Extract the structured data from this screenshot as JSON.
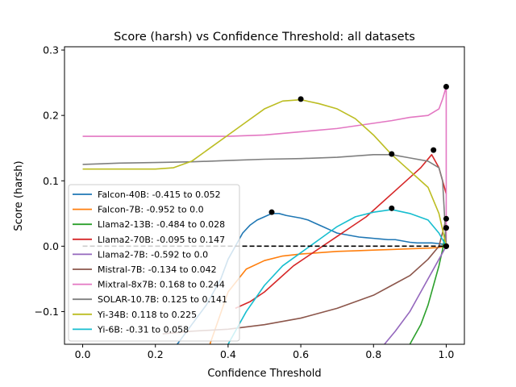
{
  "chart_data": {
    "type": "line",
    "title": "Score (harsh) vs Confidence Threshold: all datasets",
    "xlabel": "Confidence Threshold",
    "ylabel": "Score (harsh)",
    "xlim": [
      -0.05,
      1.05
    ],
    "ylim": [
      -0.15,
      0.305
    ],
    "xticks": [
      0.0,
      0.2,
      0.4,
      0.6,
      0.8,
      1.0
    ],
    "xtick_labels": [
      "0.0",
      "0.2",
      "0.4",
      "0.6",
      "0.8",
      "1.0"
    ],
    "yticks": [
      -0.1,
      0.0,
      0.1,
      0.2,
      0.3
    ],
    "ytick_labels": [
      "−0.1",
      "0.0",
      "0.1",
      "0.2",
      "0.3"
    ],
    "grid": false,
    "legend_position": "lower-left",
    "baseline": {
      "y": 0.0,
      "x_start": 0.0,
      "x_end": 1.0,
      "color": "#000000",
      "style": "dashed"
    },
    "series": [
      {
        "name": "Falcon-40B: -0.415 to 0.052",
        "color": "#1f77b4",
        "x": [
          0.26,
          0.3,
          0.34,
          0.38,
          0.4,
          0.42,
          0.44,
          0.46,
          0.48,
          0.5,
          0.52,
          0.54,
          0.56,
          0.58,
          0.6,
          0.62,
          0.64,
          0.66,
          0.68,
          0.7,
          0.72,
          0.74,
          0.76,
          0.78,
          0.8,
          0.82,
          0.84,
          0.86,
          0.88,
          0.9,
          0.92,
          0.94,
          0.96,
          0.98,
          0.99,
          1.0
        ],
        "y": [
          -0.15,
          -0.12,
          -0.09,
          -0.05,
          -0.02,
          0.0,
          0.02,
          0.032,
          0.04,
          0.045,
          0.05,
          0.05,
          0.047,
          0.045,
          0.043,
          0.04,
          0.035,
          0.03,
          0.025,
          0.02,
          0.018,
          0.016,
          0.014,
          0.013,
          0.012,
          0.011,
          0.01,
          0.01,
          0.008,
          0.006,
          0.005,
          0.005,
          0.005,
          0.004,
          0.003,
          0.0
        ],
        "max_point": [
          0.52,
          0.052
        ]
      },
      {
        "name": "Falcon-7B: -0.952 to 0.0",
        "color": "#ff7f0e",
        "x": [
          0.35,
          0.4,
          0.45,
          0.5,
          0.55,
          0.6,
          0.65,
          0.7,
          0.75,
          0.8,
          0.85,
          0.9,
          0.95,
          0.98,
          1.0
        ],
        "y": [
          -0.15,
          -0.07,
          -0.035,
          -0.022,
          -0.015,
          -0.012,
          -0.01,
          -0.008,
          -0.007,
          -0.006,
          -0.005,
          -0.004,
          -0.003,
          -0.002,
          0.0
        ],
        "max_point": [
          1.0,
          0.0
        ]
      },
      {
        "name": "Llama2-13B: -0.484 to 0.028",
        "color": "#2ca02c",
        "x": [
          0.9,
          0.93,
          0.95,
          0.97,
          0.98,
          0.99,
          1.0
        ],
        "y": [
          -0.15,
          -0.12,
          -0.09,
          -0.05,
          -0.03,
          -0.005,
          0.028
        ],
        "max_point": [
          1.0,
          0.028
        ]
      },
      {
        "name": "Llama2-70B: -0.095 to 0.147",
        "color": "#d62728",
        "x": [
          0.42,
          0.46,
          0.5,
          0.54,
          0.58,
          0.62,
          0.66,
          0.7,
          0.74,
          0.78,
          0.82,
          0.86,
          0.9,
          0.93,
          0.96,
          0.98,
          1.0
        ],
        "y": [
          -0.095,
          -0.085,
          -0.07,
          -0.05,
          -0.03,
          -0.015,
          0.0,
          0.015,
          0.03,
          0.045,
          0.065,
          0.085,
          0.105,
          0.12,
          0.14,
          0.12,
          0.08
        ],
        "max_point": [
          0.965,
          0.147
        ]
      },
      {
        "name": "Llama2-7B: -0.592 to 0.0",
        "color": "#9467bd",
        "x": [
          0.83,
          0.86,
          0.9,
          0.94,
          0.97,
          0.99,
          1.0
        ],
        "y": [
          -0.15,
          -0.13,
          -0.1,
          -0.06,
          -0.03,
          -0.01,
          0.0
        ],
        "max_point": [
          1.0,
          0.0
        ]
      },
      {
        "name": "Mistral-7B: -0.134 to 0.042",
        "color": "#8c564b",
        "x": [
          0.22,
          0.3,
          0.4,
          0.5,
          0.6,
          0.7,
          0.75,
          0.8,
          0.85,
          0.9,
          0.95,
          0.98,
          1.0
        ],
        "y": [
          -0.134,
          -0.13,
          -0.127,
          -0.12,
          -0.11,
          -0.095,
          -0.085,
          -0.075,
          -0.06,
          -0.045,
          -0.02,
          0.0,
          0.042
        ],
        "max_point": [
          1.0,
          0.042
        ]
      },
      {
        "name": "Mixtral-8x7B: 0.168 to 0.244",
        "color": "#e377c2",
        "x": [
          0.0,
          0.1,
          0.2,
          0.3,
          0.4,
          0.5,
          0.6,
          0.7,
          0.8,
          0.85,
          0.9,
          0.95,
          0.98,
          0.99,
          1.0,
          1.0
        ],
        "y": [
          0.168,
          0.168,
          0.168,
          0.168,
          0.168,
          0.17,
          0.175,
          0.18,
          0.188,
          0.192,
          0.197,
          0.2,
          0.21,
          0.225,
          0.244,
          0.0
        ],
        "max_point": [
          1.0,
          0.244
        ]
      },
      {
        "name": "SOLAR-10.7B: 0.125 to 0.141",
        "color": "#7f7f7f",
        "x": [
          0.0,
          0.1,
          0.2,
          0.3,
          0.4,
          0.5,
          0.6,
          0.7,
          0.8,
          0.85,
          0.9,
          0.95,
          0.98,
          0.99,
          1.0
        ],
        "y": [
          0.125,
          0.127,
          0.128,
          0.129,
          0.131,
          0.133,
          0.134,
          0.136,
          0.14,
          0.14,
          0.135,
          0.13,
          0.12,
          0.1,
          0.0
        ],
        "max_point": [
          0.85,
          0.141
        ]
      },
      {
        "name": "Yi-34B: 0.118 to 0.225",
        "color": "#bcbd22",
        "x": [
          0.0,
          0.1,
          0.2,
          0.25,
          0.3,
          0.35,
          0.4,
          0.45,
          0.5,
          0.55,
          0.6,
          0.65,
          0.7,
          0.75,
          0.8,
          0.85,
          0.9,
          0.95,
          0.98,
          1.0
        ],
        "y": [
          0.118,
          0.118,
          0.118,
          0.12,
          0.13,
          0.15,
          0.17,
          0.19,
          0.21,
          0.222,
          0.224,
          0.218,
          0.21,
          0.195,
          0.17,
          0.14,
          0.115,
          0.09,
          0.05,
          0.0
        ],
        "max_point": [
          0.6,
          0.225
        ]
      },
      {
        "name": "Yi-6B: -0.31 to 0.058",
        "color": "#17becf",
        "x": [
          0.4,
          0.45,
          0.5,
          0.55,
          0.6,
          0.65,
          0.7,
          0.75,
          0.8,
          0.85,
          0.9,
          0.95,
          0.98,
          1.0
        ],
        "y": [
          -0.15,
          -0.1,
          -0.06,
          -0.03,
          -0.01,
          0.01,
          0.03,
          0.045,
          0.052,
          0.056,
          0.05,
          0.04,
          0.02,
          0.0
        ],
        "max_point": [
          0.85,
          0.058
        ]
      }
    ]
  }
}
